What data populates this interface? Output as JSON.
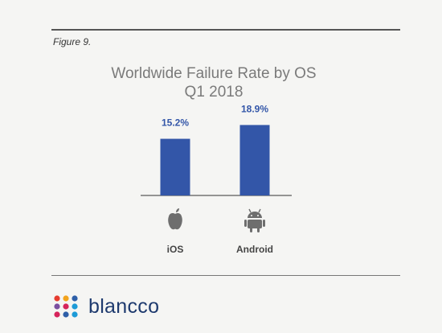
{
  "figure_label": "Figure 9.",
  "chart_data": {
    "type": "bar",
    "title": "Worldwide Failure Rate by OS",
    "subtitle": "Q1 2018",
    "categories": [
      "iOS",
      "Android"
    ],
    "icons": [
      "apple-logo-icon",
      "android-robot-icon"
    ],
    "values": [
      15.2,
      18.9
    ],
    "value_labels": [
      "15.2%",
      "18.9%"
    ],
    "ylim": [
      0,
      20.5
    ],
    "grid": false,
    "bar_color": "#3356a8"
  },
  "brand": {
    "name": "blancco",
    "text_color": "#1e3a6e",
    "dot_colors": [
      "#e63c2f",
      "#f2a31c",
      "#2e5fa8",
      "#7b4fa0",
      "#d6245b",
      "#1d9bd7"
    ]
  }
}
